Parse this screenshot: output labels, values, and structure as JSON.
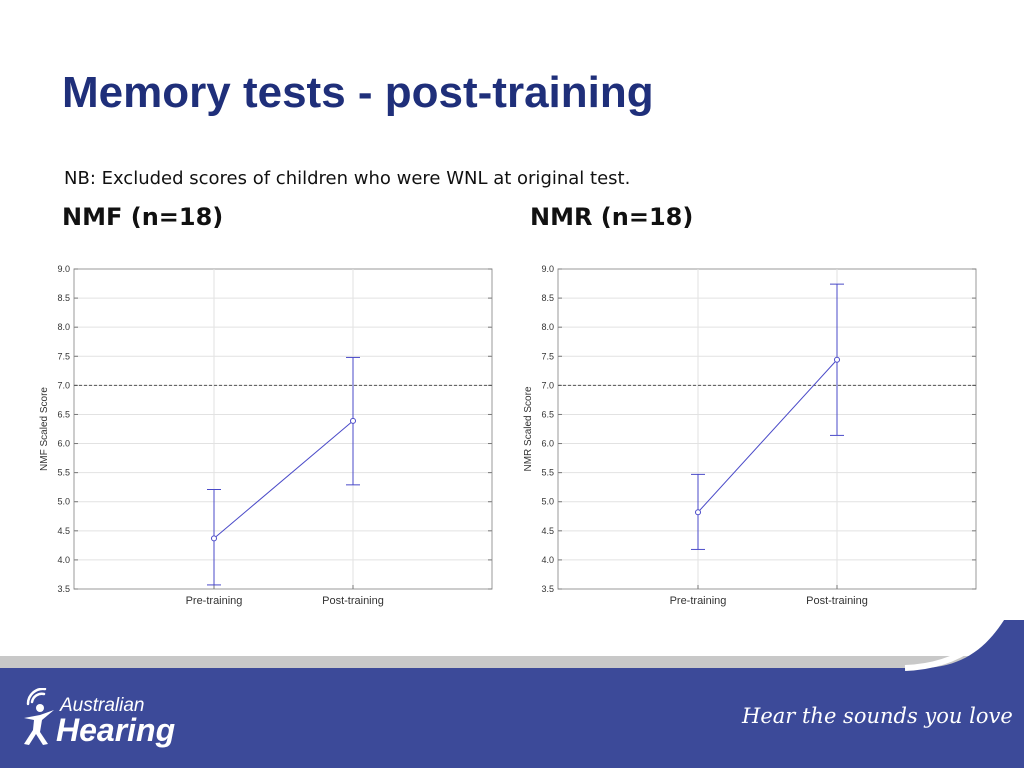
{
  "slide": {
    "title": "Memory tests -  post-training",
    "note": "NB:  Excluded scores of children who were WNL at original test."
  },
  "brand": {
    "line1": "Australian",
    "line2": "Hearing",
    "tagline": "Hear the sounds you love",
    "colors": {
      "band": "#3c4a99",
      "stripe": "#c8c8c8",
      "accent": "#1f2f7a"
    }
  },
  "chart_data": [
    {
      "type": "line",
      "heading": "NMF (n=18)",
      "ylabel": "NMF Scaled Score",
      "xlabel": "",
      "categories": [
        "Pre-training",
        "Post-training"
      ],
      "values": [
        4.37,
        6.39
      ],
      "error_low": [
        3.57,
        5.29
      ],
      "error_high": [
        5.21,
        7.48
      ],
      "ylim": [
        3.5,
        9.0
      ],
      "yticks": [
        "9.0",
        "8.5",
        "8.0",
        "7.5",
        "7.0",
        "6.5",
        "6.0",
        "5.5",
        "5.0",
        "4.5",
        "4.0",
        "3.5"
      ],
      "reference_line": 7.0,
      "grid": true,
      "color": "#4a4ac8"
    },
    {
      "type": "line",
      "heading": "NMR (n=18)",
      "ylabel": "NMR Scaled Score",
      "xlabel": "",
      "categories": [
        "Pre-training",
        "Post-training"
      ],
      "values": [
        4.82,
        7.44
      ],
      "error_low": [
        4.18,
        6.14
      ],
      "error_high": [
        5.47,
        8.74
      ],
      "ylim": [
        3.5,
        9.0
      ],
      "yticks": [
        "9.0",
        "8.5",
        "8.0",
        "7.5",
        "7.0",
        "6.5",
        "6.0",
        "5.5",
        "5.0",
        "4.5",
        "4.0",
        "3.5"
      ],
      "reference_line": 7.0,
      "grid": true,
      "color": "#4a4ac8"
    }
  ]
}
